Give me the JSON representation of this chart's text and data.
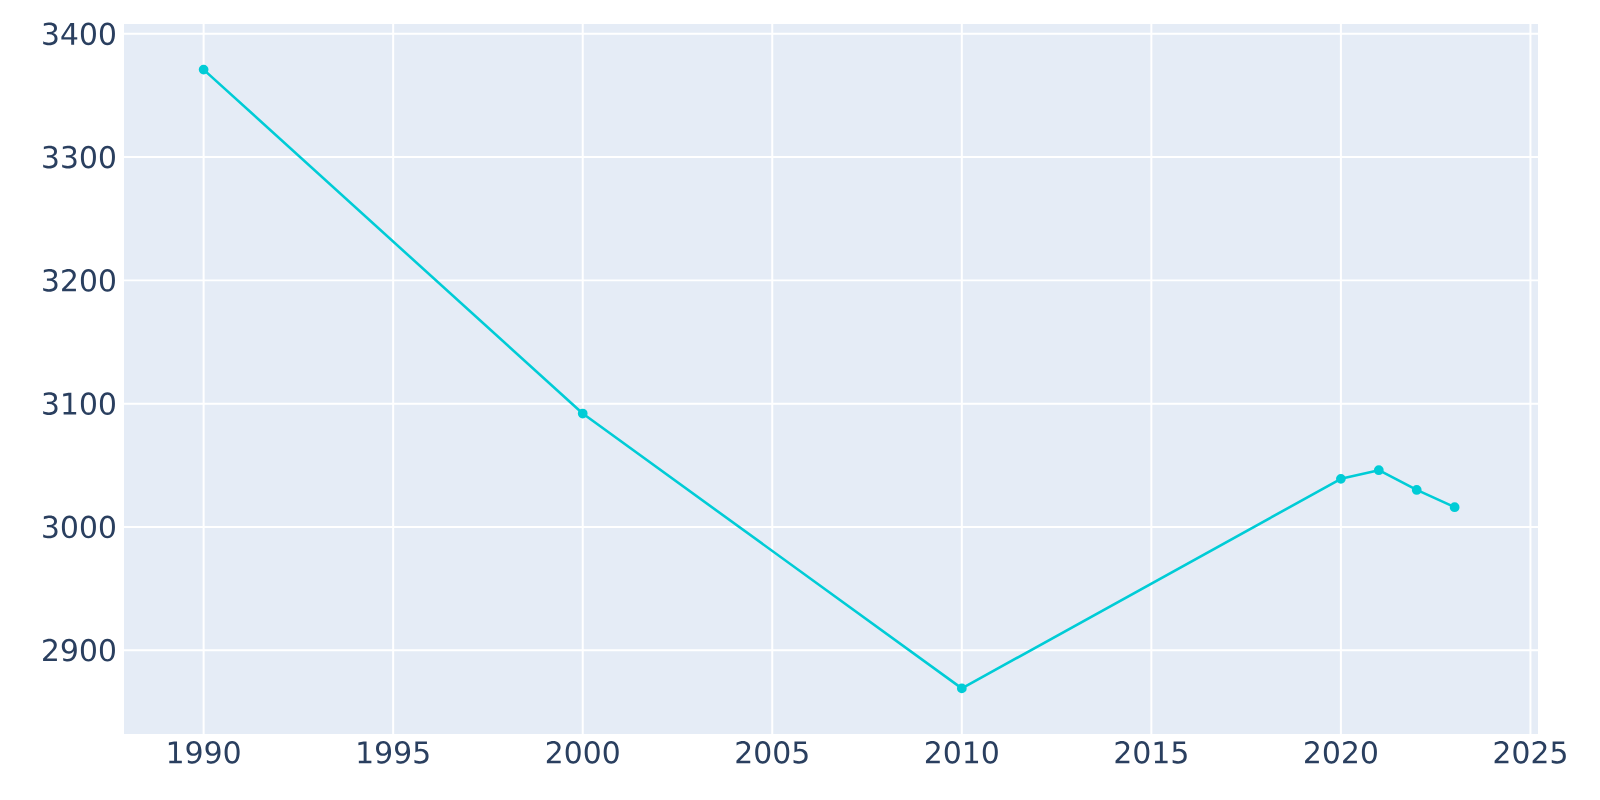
{
  "chart_data": {
    "type": "line",
    "x": [
      1990,
      2000,
      2010,
      2020,
      2021,
      2022,
      2023
    ],
    "series": [
      {
        "color": "#00ccd6",
        "values": [
          3371,
          3092,
          2869,
          3039,
          3046,
          3030,
          3016
        ]
      }
    ],
    "xlim": [
      1987.9,
      2025.2
    ],
    "ylim": [
      2832,
      3408
    ],
    "xticks": [
      1990,
      1995,
      2000,
      2005,
      2010,
      2015,
      2020,
      2025
    ],
    "yticks": [
      2900,
      3000,
      3100,
      3200,
      3300,
      3400
    ],
    "grid": true,
    "marker": "circle",
    "line_style": "solid"
  }
}
